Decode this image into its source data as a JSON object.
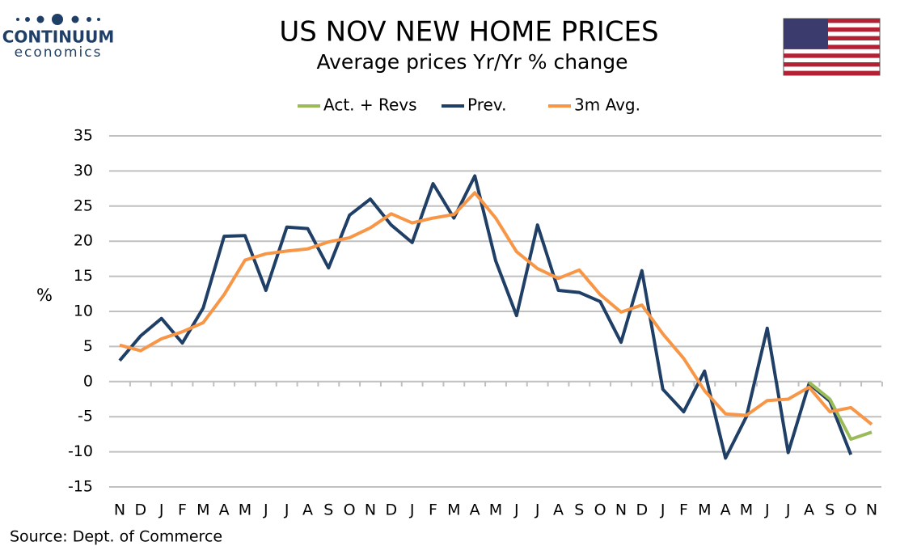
{
  "logo": {
    "name": "CONTINUUM",
    "tagline": "economics"
  },
  "chart_data": {
    "type": "line",
    "title": "US NOV NEW HOME PRICES",
    "subtitle": "Average prices Yr/Yr % change",
    "y_label": "%",
    "source": "Source: Dept. of Commerce",
    "categories": [
      "N",
      "D",
      "J",
      "F",
      "M",
      "A",
      "M",
      "J",
      "J",
      "A",
      "S",
      "O",
      "N",
      "D",
      "J",
      "F",
      "M",
      "A",
      "M",
      "J",
      "J",
      "A",
      "S",
      "O",
      "N",
      "D",
      "J",
      "F",
      "M",
      "A",
      "M",
      "J",
      "J",
      "A",
      "S",
      "O",
      "N"
    ],
    "series": [
      {
        "name": "Act. + Revs",
        "color": "#9bbb59",
        "values": [
          null,
          null,
          null,
          null,
          null,
          null,
          null,
          null,
          null,
          null,
          null,
          null,
          null,
          null,
          null,
          null,
          null,
          null,
          null,
          null,
          null,
          null,
          null,
          null,
          null,
          null,
          null,
          null,
          null,
          null,
          null,
          null,
          null,
          -0.1,
          -2.5,
          -8.2,
          -7.2
        ]
      },
      {
        "name": "Prev.",
        "color": "#1f3f66",
        "values": [
          3,
          6.5,
          9,
          5.5,
          10.5,
          20.7,
          20.8,
          13,
          22,
          21.8,
          16.2,
          23.7,
          26,
          22.3,
          19.8,
          28.2,
          23.3,
          29.3,
          17.2,
          9.4,
          22.3,
          13,
          12.7,
          11.4,
          5.6,
          15.8,
          -1.1,
          -4.3,
          1.5,
          -10.9,
          -5,
          7.6,
          -10.1,
          -0.3,
          -2.8,
          -10.4,
          null
        ]
      },
      {
        "name": "3m Avg.",
        "color": "#f79646",
        "values": [
          5.2,
          4.4,
          6.1,
          7.1,
          8.4,
          12.4,
          17.3,
          18.2,
          18.6,
          18.9,
          19.9,
          20.5,
          21.9,
          23.9,
          22.6,
          23.3,
          23.8,
          26.9,
          23.3,
          18.5,
          16.1,
          14.7,
          15.9,
          12.4,
          9.9,
          10.9,
          6.8,
          3.3,
          -1.3,
          -4.6,
          -4.8,
          -2.7,
          -2.5,
          -0.8,
          -4.3,
          -3.7,
          -6.1
        ]
      }
    ],
    "ylim": [
      -15,
      35
    ],
    "yticks": [
      -15,
      -10,
      -5,
      0,
      5,
      10,
      15,
      20,
      25,
      30,
      35
    ],
    "grid": true,
    "legend": "top"
  }
}
